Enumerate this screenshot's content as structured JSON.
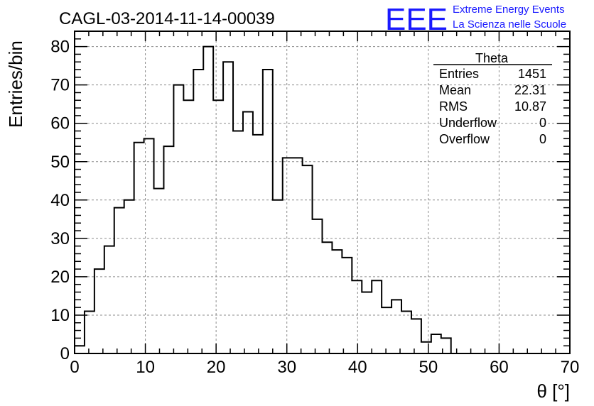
{
  "chart_data": {
    "type": "bar",
    "title": "CAGL-03-2014-11-14-00039",
    "xlabel": "θ [°]",
    "ylabel": "Entries/bin",
    "xlim": [
      0,
      70
    ],
    "ylim": [
      0,
      84
    ],
    "x_ticks": [
      "0",
      "10",
      "20",
      "30",
      "40",
      "50",
      "60",
      "70"
    ],
    "y_ticks": [
      "0",
      "10",
      "20",
      "30",
      "40",
      "50",
      "60",
      "70",
      "80"
    ],
    "grid": true,
    "bin_width": 1.4,
    "bin_edges_start": 0,
    "values": [
      2,
      11,
      22,
      28,
      38,
      40,
      55,
      56,
      43,
      54,
      70,
      66,
      74,
      80,
      66,
      76,
      58,
      63,
      57,
      74,
      40,
      51,
      51,
      49,
      35,
      29,
      27,
      25,
      19,
      16,
      19,
      12,
      14,
      11,
      9,
      3,
      5,
      4,
      0,
      0,
      0,
      0,
      0,
      0,
      0,
      0,
      0,
      0,
      0,
      0
    ],
    "stats": {
      "name": "Theta",
      "rows": [
        {
          "label": "Entries",
          "value": "1451"
        },
        {
          "label": "Mean",
          "value": "22.31"
        },
        {
          "label": "RMS",
          "value": "10.87"
        },
        {
          "label": "Underflow",
          "value": "0"
        },
        {
          "label": "Overflow",
          "value": "0"
        }
      ]
    },
    "logo": {
      "text": "EEE",
      "line1": "Extreme Energy Events",
      "line2": "La Scienza nelle Scuole",
      "color": "#1a1aff"
    },
    "line_color": "#000000",
    "grid_color": "#8c8c8c"
  }
}
